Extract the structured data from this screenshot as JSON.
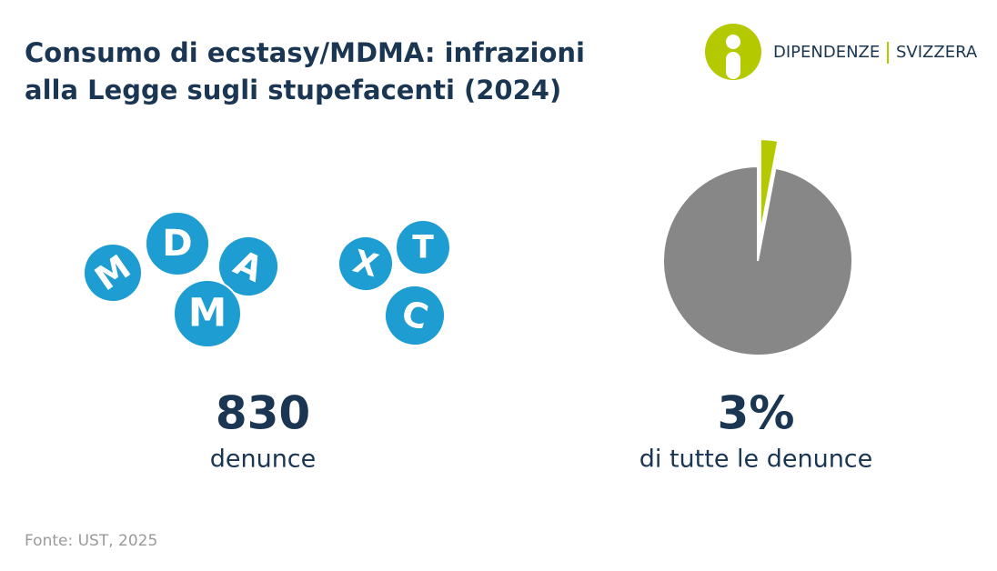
{
  "header": {
    "title": [
      "Consumo di ecstasy/MDMA: infrazioni",
      "alla Legge sugli stupefacenti (2024)"
    ],
    "logo": [
      "DIPENDENZE",
      "SVIZZERA"
    ]
  },
  "pills": [
    "M",
    "D",
    "A",
    "M",
    "X",
    "T",
    "C"
  ],
  "stat": {
    "value": "830",
    "label": "denunce"
  },
  "chart_data": {
    "type": "pie",
    "values": [
      3,
      97
    ],
    "value_labels": [
      "3%",
      null
    ],
    "colors": [
      "#b5c900",
      "#878787"
    ],
    "caption": "di tutte le denunce"
  },
  "source": "Fonte: UST, 2025"
}
